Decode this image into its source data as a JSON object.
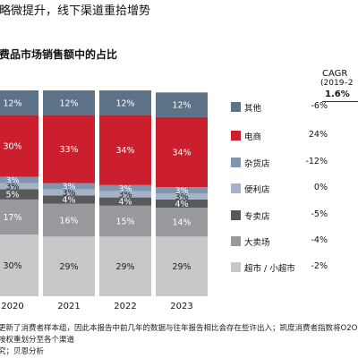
{
  "headline": "略微提升，线下渠道重拾增势",
  "chart_data": {
    "type": "bar",
    "stacked": true,
    "title": "费品市场销售额中的占比",
    "categories": [
      "2020",
      "2021",
      "2022",
      "2023"
    ],
    "series": [
      {
        "name": "超市/小超市",
        "color": "#c8c8ca",
        "values": [
          30,
          29,
          29,
          29
        ]
      },
      {
        "name": "大卖场",
        "color": "#98999c",
        "values": [
          17,
          16,
          15,
          14
        ]
      },
      {
        "name": "专卖店",
        "color": "#58595b",
        "values": [
          5,
          4,
          4,
          4
        ]
      },
      {
        "name": "便利店",
        "color": "#a5b3c7",
        "values": [
          3,
          3,
          3,
          3
        ]
      },
      {
        "name": "杂货店",
        "color": "#7f96af",
        "values": [
          3,
          3,
          3,
          3
        ]
      },
      {
        "name": "电商",
        "color": "#cc1f2d",
        "values": [
          30,
          33,
          34,
          34
        ]
      },
      {
        "name": "其他",
        "color": "#5c7287",
        "values": [
          12,
          12,
          12,
          12
        ]
      }
    ],
    "value_labels": [
      [
        "30%",
        "17%",
        "5%",
        "3%",
        "3%",
        "30%",
        "12%"
      ],
      [
        "29%",
        "16%",
        "4%",
        "3%",
        "3%",
        "33%",
        "12%"
      ],
      [
        "29%",
        "15%",
        "4%",
        "3%",
        "3%",
        "34%",
        "12%"
      ],
      [
        "29%",
        "14%",
        "4%",
        "3%",
        "3%",
        "34%",
        "12%"
      ]
    ],
    "cagr": {
      "header": "CAGR",
      "period": "(2019–2",
      "total": "1.6%",
      "values": {
        "其他": "-6%",
        "电商": "24%",
        "杂货店": "-12%",
        "便利店": "0%",
        "专卖店": "-5%",
        "大卖场": "-4%",
        "超市/小超市": "-2%"
      }
    },
    "ylim": [
      0,
      100
    ],
    "legend_position": "right"
  },
  "legend_order": [
    "其他",
    "电商",
    "杂货店",
    "便利店",
    "专卖店",
    "大卖场",
    "超市/小超市"
  ],
  "legend_display": {
    "其他": "其他",
    "电商": "电商",
    "杂货店": "杂货店",
    "便利店": "便利店",
    "专卖店": "专卖店",
    "大卖场": "大卖场",
    "超市/小超市": "超市 / 小超市"
  },
  "footnotes": [
    "更新了消费者样本组，因此本报告中前几年的数据与往年报告相比会存在些许出入；凯度消费者指数将O2O销",
    "按权重划分至各个渠道",
    "究；贝恩分析"
  ]
}
